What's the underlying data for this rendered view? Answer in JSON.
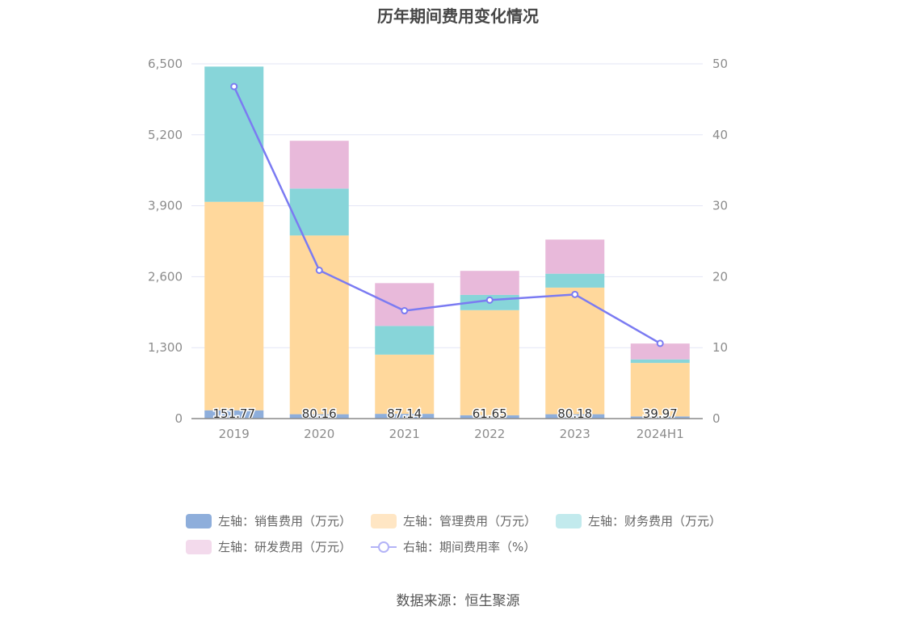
{
  "chart_data": {
    "type": "bar",
    "title": "历年期间费用变化情况",
    "categories": [
      "2019",
      "2020",
      "2021",
      "2022",
      "2023",
      "2024H1"
    ],
    "series": [
      {
        "name": "左轴：销售费用（万元）",
        "axis": "left",
        "color": "#8eaedb",
        "values": [
          151.77,
          80.16,
          87.14,
          61.65,
          80.18,
          39.97
        ],
        "labels": [
          "151.77",
          "80.16",
          "87.14",
          "61.65",
          "80.18",
          "39.97"
        ]
      },
      {
        "name": "左轴：管理费用（万元）",
        "axis": "left",
        "color": "#ffd89c",
        "values": [
          3820,
          3275,
          1085,
          1925,
          2320,
          980
        ]
      },
      {
        "name": "左轴：财务费用（万元）",
        "axis": "left",
        "color": "#87d5d9",
        "values": [
          2478,
          860,
          525,
          280,
          255,
          65
        ]
      },
      {
        "name": "左轴：研发费用（万元）",
        "axis": "left",
        "color": "#e8b9da",
        "values": [
          0,
          875,
          785,
          440,
          625,
          290
        ]
      },
      {
        "name": "右轴：期间费用率（%）",
        "axis": "right",
        "type": "line",
        "color": "#7b7bf2",
        "values": [
          46.8,
          20.9,
          15.2,
          16.7,
          17.5,
          10.6
        ]
      }
    ],
    "left_axis": {
      "min": 0,
      "max": 6500,
      "ticks": [
        "0",
        "1,300",
        "2,600",
        "3,900",
        "5,200",
        "6,500"
      ],
      "tick_values": [
        0,
        1300,
        2600,
        3900,
        5200,
        6500
      ]
    },
    "right_axis": {
      "min": 0,
      "max": 50,
      "ticks": [
        "0",
        "10",
        "20",
        "30",
        "40",
        "50"
      ],
      "tick_values": [
        0,
        10,
        20,
        30,
        40,
        50
      ]
    },
    "legend_position": "bottom"
  },
  "legend": [
    {
      "label": "左轴：销售费用（万元）",
      "color": "#8eaedb",
      "kind": "bar"
    },
    {
      "label": "左轴：管理费用（万元）",
      "color": "#ffe6c4",
      "kind": "bar"
    },
    {
      "label": "左轴：财务费用（万元）",
      "color": "#c2eaed",
      "kind": "bar"
    },
    {
      "label": "左轴：研发费用（万元）",
      "color": "#f3daec",
      "kind": "bar"
    },
    {
      "label": "右轴：期间费用率（%）",
      "color": "#b3b3f7",
      "kind": "line"
    }
  ],
  "source": "数据来源：恒生聚源"
}
